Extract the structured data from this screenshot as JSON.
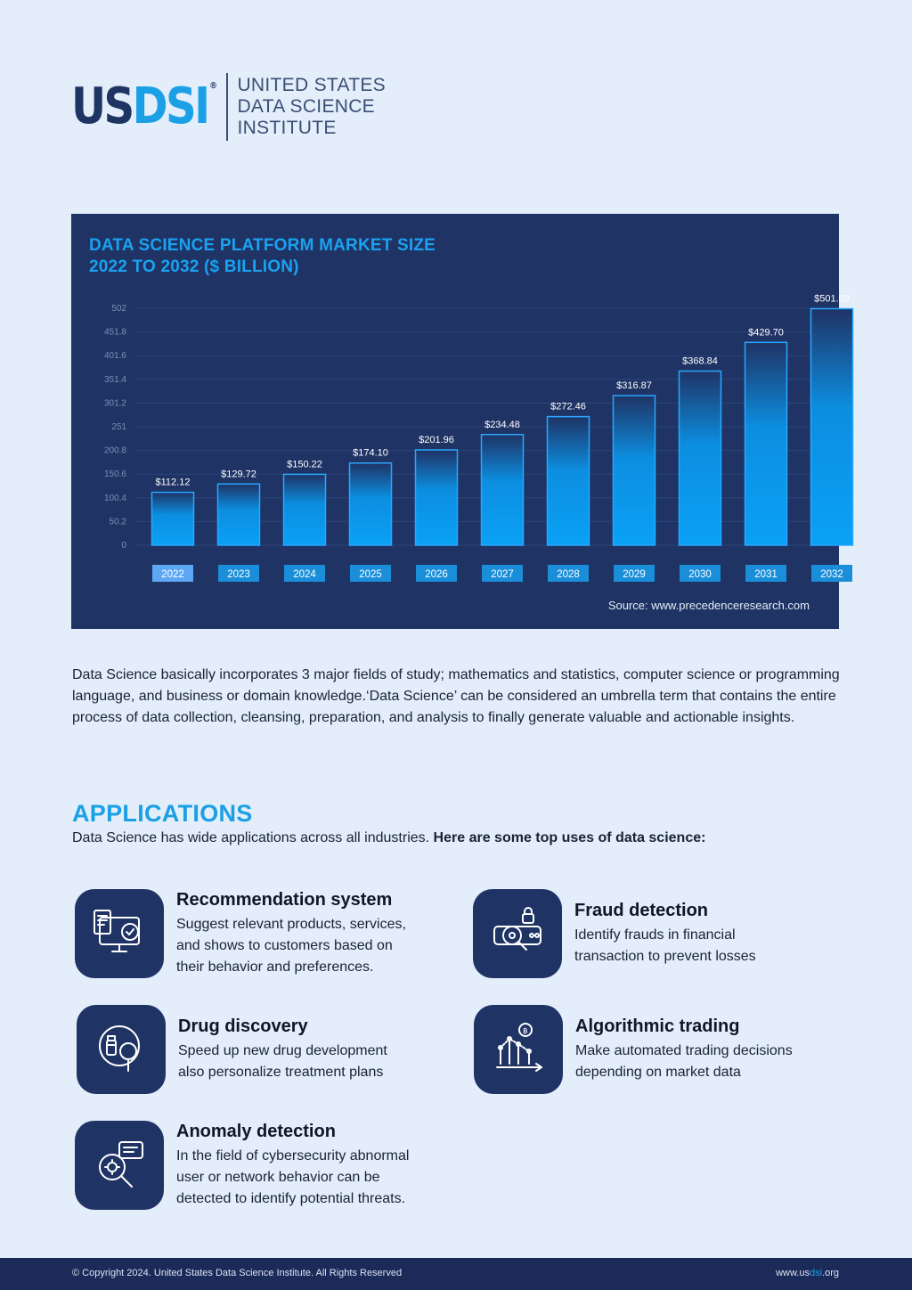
{
  "logo": {
    "mark_us": "US",
    "mark_dsi": "DSI",
    "registered": "®",
    "line1": "UNITED STATES",
    "line2": "DATA SCIENCE",
    "line3": "INSTITUTE"
  },
  "chart_data": {
    "type": "bar",
    "title_line1": "DATA SCIENCE PLATFORM MARKET SIZE",
    "title_line2": "2022 TO 2032 ($ BILLION)",
    "categories": [
      "2022",
      "2023",
      "2024",
      "2025",
      "2026",
      "2027",
      "2028",
      "2029",
      "2030",
      "2031",
      "2032"
    ],
    "values": [
      112.12,
      129.72,
      150.22,
      174.1,
      201.96,
      234.48,
      272.46,
      316.87,
      368.84,
      429.7,
      501.03
    ],
    "value_labels": [
      "$112.12",
      "$129.72",
      "$150.22",
      "$174.10",
      "$201.96",
      "$234.48",
      "$272.46",
      "$316.87",
      "$368.84",
      "$429.70",
      "$501.03"
    ],
    "y_ticks": [
      0,
      50.2,
      100.4,
      150.6,
      200.8,
      251,
      301.2,
      351.4,
      401.6,
      451.8,
      502
    ],
    "ylim": [
      0,
      502
    ],
    "grid": true,
    "highlighted_category": "2022",
    "source": "Source: www.precedenceresearch.com",
    "colors": {
      "background": "#1f3365",
      "bar_top": "#1f3365",
      "bar_bottom": "#0aa1f5",
      "bar_border": "#27a8ff",
      "tick_box": "#1a8ed9",
      "tick_box_highlight": "#5da7f5"
    }
  },
  "intro": "Data Science basically incorporates 3 major fields of study; mathematics and statistics, computer science or programming language, and business or domain knowledge.‘Data Science’ can be considered an umbrella term that contains the entire process of data collection, cleansing, preparation, and analysis to finally generate valuable and actionable insights.",
  "applications": {
    "heading": "APPLICATIONS",
    "sub_plain": "Data Science has wide applications across all industries. ",
    "sub_bold": "Here are some top uses of data science:",
    "items": [
      {
        "title": "Recommendation system",
        "desc": [
          "Suggest relevant products, services,",
          "and shows to customers based on",
          "their behavior and preferences."
        ],
        "icon": "recommendation-icon"
      },
      {
        "title": "Fraud detection",
        "desc": [
          "Identify frauds in financial",
          "transaction to prevent losses"
        ],
        "icon": "fraud-detection-icon"
      },
      {
        "title": "Drug discovery",
        "desc": [
          "Speed up new drug development",
          "also personalize treatment plans"
        ],
        "icon": "drug-discovery-icon"
      },
      {
        "title": "Algorithmic trading",
        "desc": [
          "Make automated trading decisions",
          "depending on market data"
        ],
        "icon": "trading-icon"
      },
      {
        "title": "Anomaly detection",
        "desc": [
          "In the field of cybersecurity abnormal",
          "user or network behavior can be",
          "detected to identify potential threats."
        ],
        "icon": "anomaly-detection-icon"
      }
    ]
  },
  "footer": {
    "copyright": "© Copyright 2024. United States Data Science Institute. All Rights Reserved",
    "url_pre": "www.us",
    "url_hl": "dsi",
    "url_post": ".org"
  }
}
